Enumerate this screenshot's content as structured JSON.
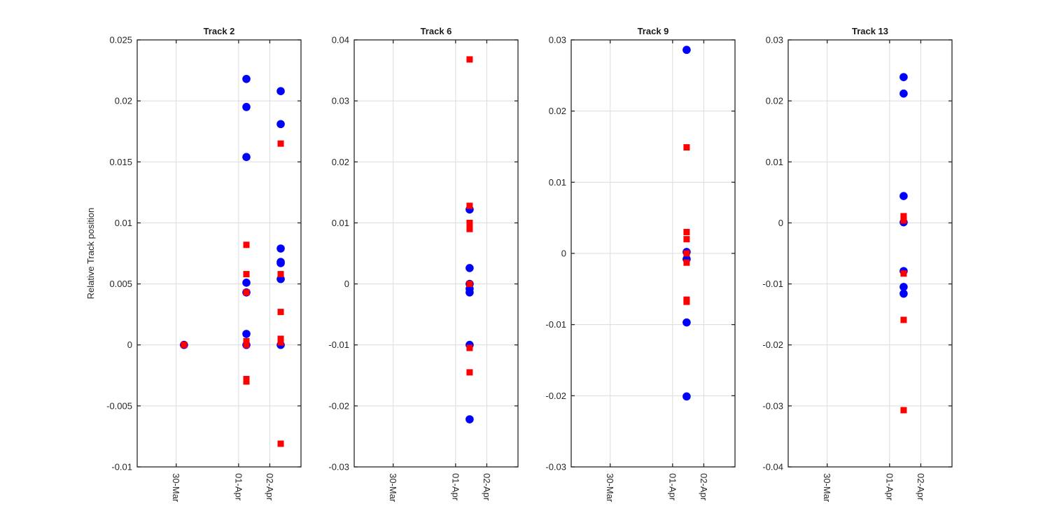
{
  "figure": {
    "ylabel": "Relative Track position"
  },
  "x_axis": {
    "tick_labels": [
      "30-Mar",
      "01-Apr",
      "02-Apr"
    ]
  },
  "colors": {
    "blue_series": "#0000ff",
    "red_series": "#ff0000",
    "axis": "#262626",
    "grid": "#dcdcdc"
  },
  "chart_data": [
    {
      "type": "scatter",
      "title": "Track 2",
      "ylabel": "Relative Track position",
      "xlim": [
        -1.25,
        4.0
      ],
      "ylim": [
        -0.01,
        0.025
      ],
      "grid": true,
      "x_ticks": [
        0,
        2,
        3
      ],
      "x_tick_labels": [
        "30-Mar",
        "01-Apr",
        "02-Apr"
      ],
      "y_ticks": [
        -0.01,
        -0.005,
        0,
        0.005,
        0.01,
        0.015,
        0.02,
        0.025
      ],
      "y_tick_labels": [
        "-0.01",
        "-0.005",
        "0",
        "0.005",
        "0.01",
        "0.015",
        "0.02",
        "0.025"
      ],
      "series": [
        {
          "marker": "circle",
          "color": "blue",
          "points": [
            [
              0.25,
              0
            ],
            [
              2.25,
              0.0218
            ],
            [
              2.25,
              0.0195
            ],
            [
              2.25,
              0.0154
            ],
            [
              2.25,
              0.0051
            ],
            [
              2.25,
              0.0043
            ],
            [
              2.25,
              0.0009
            ],
            [
              2.25,
              0
            ],
            [
              3.35,
              0.0208
            ],
            [
              3.35,
              0.0181
            ],
            [
              3.35,
              0.0079
            ],
            [
              3.35,
              0.0068
            ],
            [
              3.35,
              0.0067
            ],
            [
              3.35,
              0.0054
            ],
            [
              3.35,
              0
            ]
          ]
        },
        {
          "marker": "square",
          "color": "red",
          "points": [
            [
              0.25,
              0
            ],
            [
              2.25,
              0.0082
            ],
            [
              2.25,
              0.0058
            ],
            [
              2.25,
              0.0043
            ],
            [
              2.25,
              0.0003
            ],
            [
              2.25,
              0
            ],
            [
              2.25,
              -0.0028
            ],
            [
              2.25,
              -0.003
            ],
            [
              3.35,
              0.0165
            ],
            [
              3.35,
              0.0058
            ],
            [
              3.35,
              0.0027
            ],
            [
              3.35,
              0.0005
            ],
            [
              3.35,
              0.0002
            ],
            [
              3.35,
              -0.0081
            ]
          ]
        }
      ]
    },
    {
      "type": "scatter",
      "title": "Track 6",
      "xlim": [
        -1.25,
        4.0
      ],
      "ylim": [
        -0.03,
        0.04
      ],
      "grid": true,
      "x_ticks": [
        0,
        2,
        3
      ],
      "x_tick_labels": [
        "30-Mar",
        "01-Apr",
        "02-Apr"
      ],
      "y_ticks": [
        -0.03,
        -0.02,
        -0.01,
        0,
        0.01,
        0.02,
        0.03,
        0.04
      ],
      "y_tick_labels": [
        "-0.03",
        "-0.02",
        "-0.01",
        "0",
        "0.01",
        "0.02",
        "0.03",
        "0.04"
      ],
      "series": [
        {
          "marker": "circle",
          "color": "blue",
          "points": [
            [
              2.45,
              0.0122
            ],
            [
              2.45,
              0.0026
            ],
            [
              2.45,
              0
            ],
            [
              2.45,
              -0.0008
            ],
            [
              2.45,
              -0.0014
            ],
            [
              2.45,
              -0.01
            ],
            [
              2.45,
              -0.0222
            ]
          ]
        },
        {
          "marker": "square",
          "color": "red",
          "points": [
            [
              2.45,
              0.0368
            ],
            [
              2.45,
              0.0128
            ],
            [
              2.45,
              0.01
            ],
            [
              2.45,
              0.009
            ],
            [
              2.45,
              0
            ],
            [
              2.45,
              -0.0105
            ],
            [
              2.45,
              -0.0145
            ]
          ]
        }
      ]
    },
    {
      "type": "scatter",
      "title": "Track 9",
      "xlim": [
        -1.25,
        4.0
      ],
      "ylim": [
        -0.03,
        0.03
      ],
      "grid": true,
      "x_ticks": [
        0,
        2,
        3
      ],
      "x_tick_labels": [
        "30-Mar",
        "01-Apr",
        "02-Apr"
      ],
      "y_ticks": [
        -0.03,
        -0.02,
        -0.01,
        0,
        0.01,
        0.02,
        0.03
      ],
      "y_tick_labels": [
        "-0.03",
        "-0.02",
        "-0.01",
        "0",
        "0.01",
        "0.02",
        "0.03"
      ],
      "series": [
        {
          "marker": "circle",
          "color": "blue",
          "points": [
            [
              2.45,
              0.0286
            ],
            [
              2.45,
              0.0002
            ],
            [
              2.45,
              -0.0008
            ],
            [
              2.45,
              -0.0097
            ],
            [
              2.45,
              -0.0201
            ]
          ]
        },
        {
          "marker": "square",
          "color": "red",
          "points": [
            [
              2.45,
              0.0149
            ],
            [
              2.45,
              0.003
            ],
            [
              2.45,
              0.002
            ],
            [
              2.45,
              0
            ],
            [
              2.45,
              -0.0013
            ],
            [
              2.45,
              -0.0065
            ],
            [
              2.45,
              -0.0068
            ]
          ]
        }
      ]
    },
    {
      "type": "scatter",
      "title": "Track 13",
      "xlim": [
        -1.25,
        4.0
      ],
      "ylim": [
        -0.04,
        0.03
      ],
      "grid": true,
      "x_ticks": [
        0,
        2,
        3
      ],
      "x_tick_labels": [
        "30-Mar",
        "01-Apr",
        "02-Apr"
      ],
      "y_ticks": [
        -0.04,
        -0.03,
        -0.02,
        -0.01,
        0,
        0.01,
        0.02,
        0.03
      ],
      "y_tick_labels": [
        "-0.04",
        "-0.03",
        "-0.02",
        "-0.01",
        "0",
        "0.01",
        "0.02",
        "0.03"
      ],
      "series": [
        {
          "marker": "circle",
          "color": "blue",
          "points": [
            [
              2.45,
              0.0239
            ],
            [
              2.45,
              0.0212
            ],
            [
              2.45,
              0.0044
            ],
            [
              2.45,
              0.0001
            ],
            [
              2.45,
              -0.0079
            ],
            [
              2.45,
              -0.0105
            ],
            [
              2.45,
              -0.0116
            ]
          ]
        },
        {
          "marker": "square",
          "color": "red",
          "points": [
            [
              2.45,
              0.0011
            ],
            [
              2.45,
              0.0004
            ],
            [
              2.45,
              -0.0083
            ],
            [
              2.45,
              -0.0159
            ],
            [
              2.45,
              -0.0307
            ]
          ]
        }
      ]
    }
  ]
}
